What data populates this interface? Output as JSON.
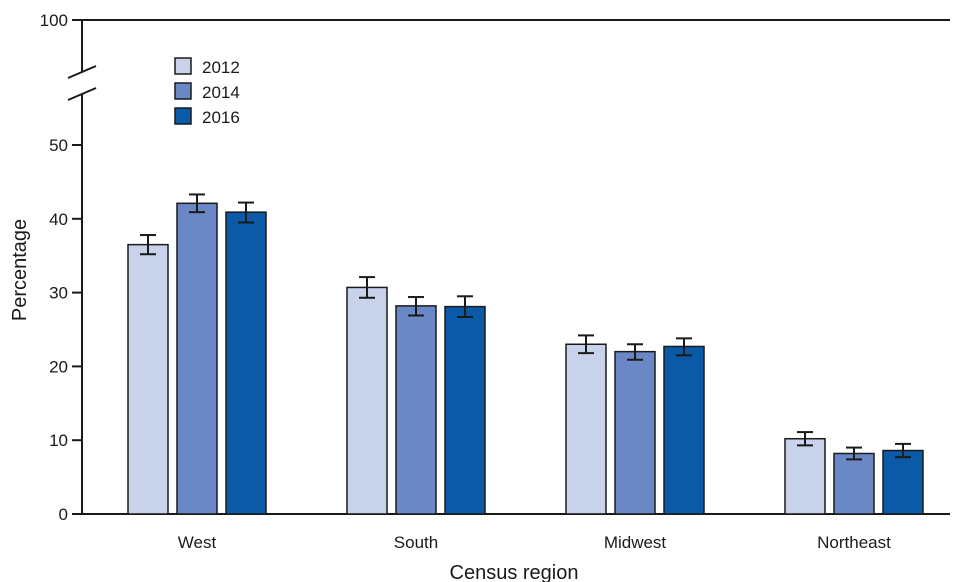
{
  "chart_data": {
    "type": "bar",
    "title": "",
    "xlabel": "Census region",
    "ylabel": "Percentage",
    "categories": [
      "West",
      "South",
      "Midwest",
      "Northeast"
    ],
    "series": [
      {
        "name": "2012",
        "color": "#c8d2ea",
        "values": [
          36.5,
          30.7,
          23.0,
          10.2
        ],
        "error_low": [
          35.2,
          29.3,
          21.8,
          9.3
        ],
        "error_high": [
          37.8,
          32.1,
          24.2,
          11.1
        ]
      },
      {
        "name": "2014",
        "color": "#6a88c6",
        "values": [
          42.1,
          28.2,
          22.0,
          8.2
        ],
        "error_low": [
          40.9,
          26.9,
          20.9,
          7.4
        ],
        "error_high": [
          43.3,
          29.4,
          23.0,
          9.0
        ]
      },
      {
        "name": "2016",
        "color": "#0b5aa8",
        "values": [
          40.9,
          28.1,
          22.7,
          8.6
        ],
        "error_low": [
          39.5,
          26.7,
          21.5,
          7.7
        ],
        "error_high": [
          42.2,
          29.5,
          23.8,
          9.5
        ]
      }
    ],
    "y_ticks": [
      0,
      10,
      20,
      30,
      40,
      50,
      100
    ],
    "y_axis_break": [
      55,
      100
    ],
    "ylim": [
      0,
      100
    ],
    "grid": false,
    "legend_position": "top-left"
  }
}
